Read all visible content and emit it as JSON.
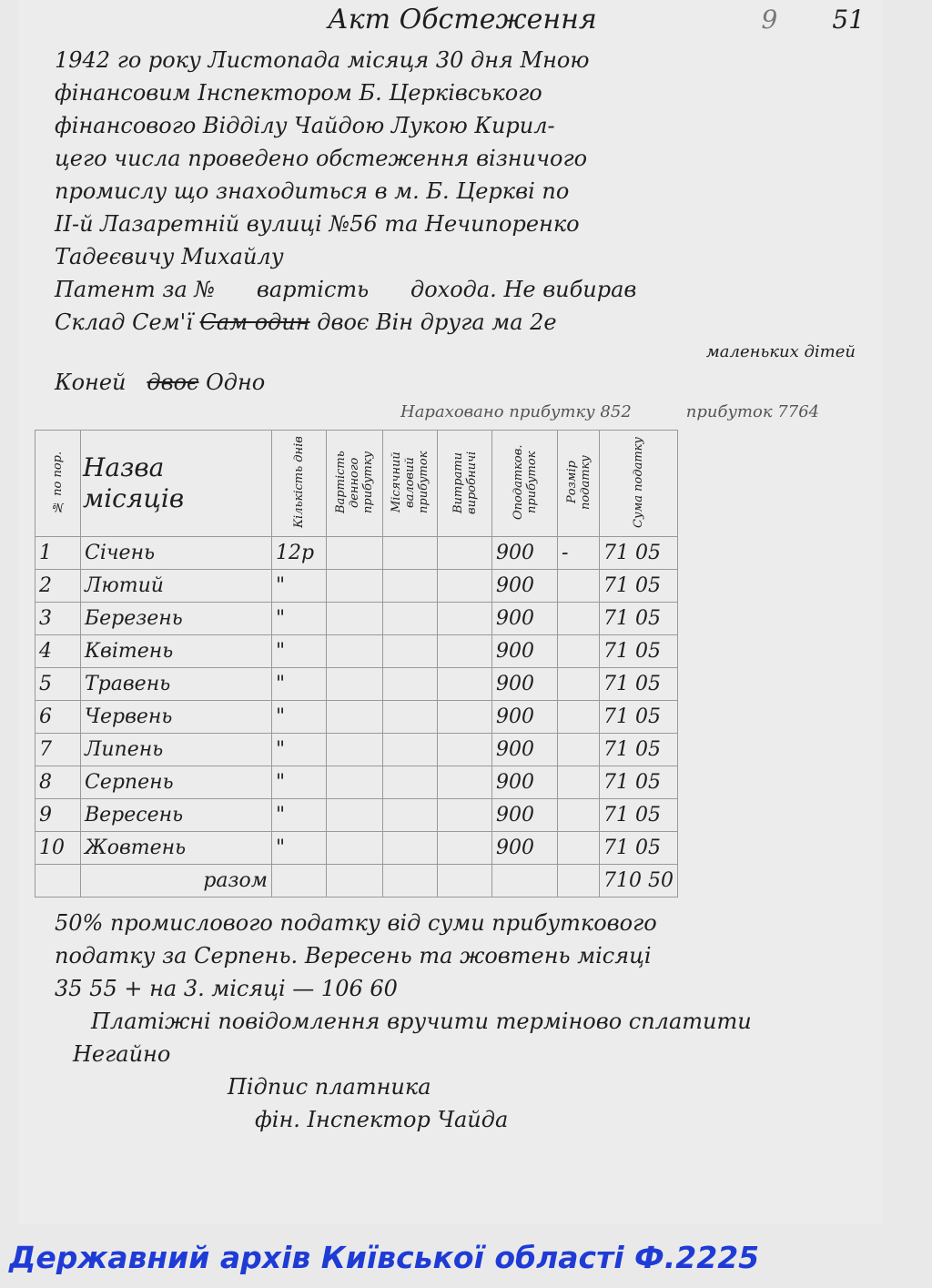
{
  "document": {
    "title": "Акт Обстеження",
    "page_numbers": [
      "9",
      "51"
    ],
    "lines": [
      "1942 го року Листопада місяця 30 дня Мною",
      "фінансовим Інспектором Б. Церківського",
      "фінансового Відділу Чайдою Лукою Кирил-",
      "цего числа проведено обстеження візничого",
      "промислу що знаходиться в м. Б. Церкві по",
      "II-й Лазаретній вулиці №56 та Нечипоренко",
      "Тадеєвичу Михайлу"
    ],
    "patent_line": "Патент за №      вартість      дохода. Не вибирав",
    "family_label": "Склад Сем'ї",
    "family_struck": "Сам один",
    "family_rest": "двоє Він друга ма 2е",
    "family_rest2": "маленьких дітей",
    "horses_label": "Коней",
    "horses_struck": "двоє",
    "horses_value": "Одно",
    "annotations": [
      "Нараховано прибутку 852",
      "прибуток 7764"
    ]
  },
  "table": {
    "headers": [
      "№ по пор.",
      "Назва місяців",
      "Кількість днів",
      "Вартість денного прибутку",
      "Місячний валовий прибуток",
      "Витрати виробничі",
      "Оподатков. прибуток",
      "Розмір податку",
      "Сума податку"
    ],
    "rows": [
      {
        "n": "1",
        "month": "Січень",
        "days": "12р",
        "taxable": "900",
        "rate": "-",
        "sum": "71 05"
      },
      {
        "n": "2",
        "month": "Лютий",
        "days": "\"",
        "taxable": "900",
        "rate": "",
        "sum": "71 05"
      },
      {
        "n": "3",
        "month": "Березень",
        "days": "\"",
        "taxable": "900",
        "rate": "",
        "sum": "71 05"
      },
      {
        "n": "4",
        "month": "Квітень",
        "days": "\"",
        "taxable": "900",
        "rate": "",
        "sum": "71 05"
      },
      {
        "n": "5",
        "month": "Травень",
        "days": "\"",
        "taxable": "900",
        "rate": "",
        "sum": "71 05"
      },
      {
        "n": "6",
        "month": "Червень",
        "days": "\"",
        "taxable": "900",
        "rate": "",
        "sum": "71 05"
      },
      {
        "n": "7",
        "month": "Липень",
        "days": "\"",
        "taxable": "900",
        "rate": "",
        "sum": "71 05"
      },
      {
        "n": "8",
        "month": "Серпень",
        "days": "\"",
        "taxable": "900",
        "rate": "",
        "sum": "71 05"
      },
      {
        "n": "9",
        "month": "Вересень",
        "days": "\"",
        "taxable": "900",
        "rate": "",
        "sum": "71 05"
      },
      {
        "n": "10",
        "month": "Жовтень",
        "days": "\"",
        "taxable": "900",
        "rate": "",
        "sum": "71 05"
      }
    ],
    "total_label": "разом",
    "total_value": "710 50"
  },
  "bottom": {
    "lines": [
      "50% промислового податку від суми прибуткового",
      "податку за Серпень. Вересень та жовтень місяці",
      "35 55 + на 3. місяці — 106 60",
      "Платіжні повідомлення вручити терміново сплатити",
      "Негайно"
    ],
    "signature_payer": "Підпис платника",
    "signature_inspector": "фін. Інспектор Чайда"
  },
  "footer": "Державний архів Київської області Ф.2225"
}
